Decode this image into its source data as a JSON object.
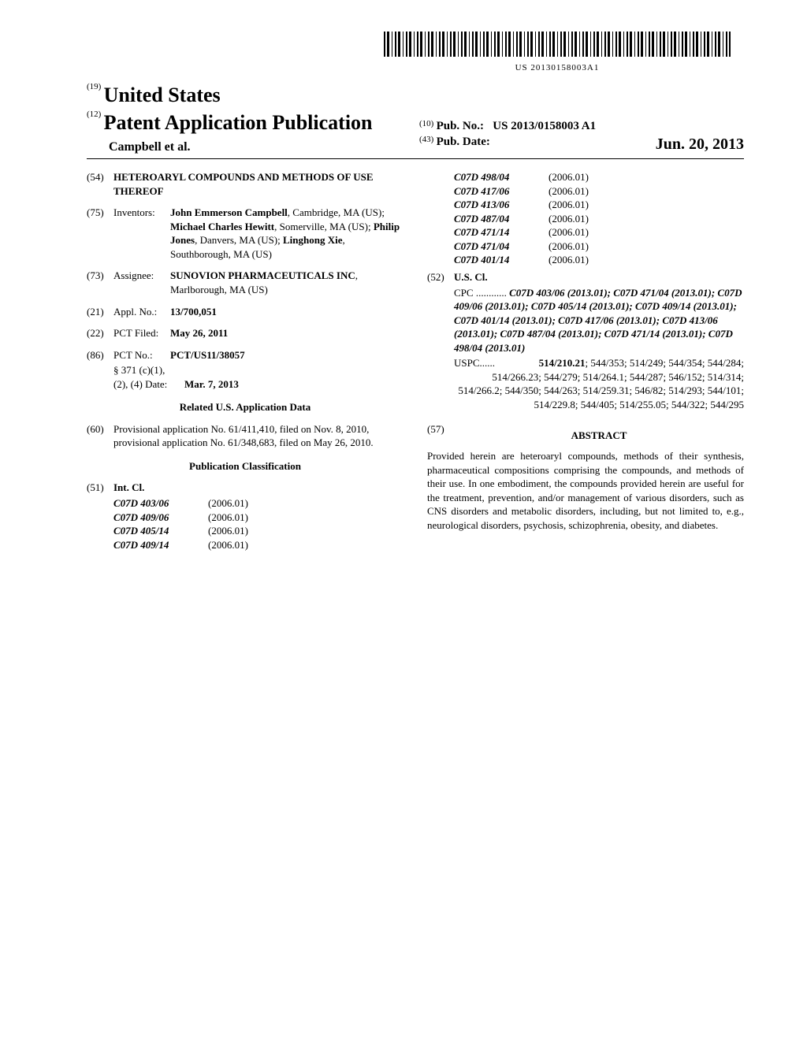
{
  "barcode_text": "US 20130158003A1",
  "header": {
    "num19": "(19)",
    "country": "United States",
    "num12": "(12)",
    "pub_type": "Patent Application Publication",
    "authors_line": "Campbell et al.",
    "num10": "(10)",
    "pubno_label": "Pub. No.:",
    "pubno": "US 2013/0158003 A1",
    "num43": "(43)",
    "pubdate_label": "Pub. Date:",
    "pubdate": "Jun. 20, 2013"
  },
  "title": {
    "num": "(54)",
    "text": "HETEROARYL COMPOUNDS AND METHODS OF USE THEREOF"
  },
  "inventors": {
    "num": "(75)",
    "label": "Inventors:",
    "text": "John Emmerson Campbell, Cambridge, MA (US); Michael Charles Hewitt, Somerville, MA (US); Philip Jones, Danvers, MA (US); Linghong Xie, Southborough, MA (US)",
    "name1": "John Emmerson Campbell",
    "loc1": ", Cambridge, MA (US); ",
    "name2": "Michael Charles Hewitt",
    "loc2": ", Somerville, MA (US); ",
    "name3": "Philip Jones",
    "loc3": ", Danvers, MA (US); ",
    "name4": "Linghong Xie",
    "loc4": ", Southborough, MA (US)"
  },
  "assignee": {
    "num": "(73)",
    "label": "Assignee:",
    "name": "SUNOVION PHARMACEUTICALS INC",
    "loc": ", Marlborough, MA (US)"
  },
  "applno": {
    "num": "(21)",
    "label": "Appl. No.:",
    "value": "13/700,051"
  },
  "pctfiled": {
    "num": "(22)",
    "label": "PCT Filed:",
    "value": "May 26, 2011"
  },
  "pctno": {
    "num": "(86)",
    "label": "PCT No.:",
    "value": "PCT/US11/38057",
    "sub1": "§ 371 (c)(1),",
    "sub2": "(2), (4) Date:",
    "sub2val": "Mar. 7, 2013"
  },
  "related": {
    "title": "Related U.S. Application Data",
    "num": "(60)",
    "text": "Provisional application No. 61/411,410, filed on Nov. 8, 2010, provisional application No. 61/348,683, filed on May 26, 2010."
  },
  "pubclass_title": "Publication Classification",
  "intcl": {
    "num": "(51)",
    "label": "Int. Cl.",
    "rows": [
      {
        "code": "C07D 403/06",
        "year": "(2006.01)"
      },
      {
        "code": "C07D 409/06",
        "year": "(2006.01)"
      },
      {
        "code": "C07D 405/14",
        "year": "(2006.01)"
      },
      {
        "code": "C07D 409/14",
        "year": "(2006.01)"
      },
      {
        "code": "C07D 498/04",
        "year": "(2006.01)"
      },
      {
        "code": "C07D 417/06",
        "year": "(2006.01)"
      },
      {
        "code": "C07D 413/06",
        "year": "(2006.01)"
      },
      {
        "code": "C07D 487/04",
        "year": "(2006.01)"
      },
      {
        "code": "C07D 471/14",
        "year": "(2006.01)"
      },
      {
        "code": "C07D 471/04",
        "year": "(2006.01)"
      },
      {
        "code": "C07D 401/14",
        "year": "(2006.01)"
      }
    ]
  },
  "uscl": {
    "num": "(52)",
    "label": "U.S. Cl.",
    "cpc_label": "CPC",
    "cpc_dots": " ............ ",
    "cpc_lines": [
      "C07D 403/06 (2013.01); C07D 471/04",
      "(2013.01); C07D 409/06 (2013.01); C07D",
      "405/14 (2013.01); C07D 409/14 (2013.01);",
      "C07D 401/14 (2013.01); C07D 417/06",
      "(2013.01); C07D 413/06 (2013.01); C07D",
      "487/04 (2013.01); C07D 471/14 (2013.01);",
      "C07D 498/04 (2013.01)"
    ],
    "uspc_label": "USPC",
    "uspc_dots": " ...... ",
    "uspc_first": "514/210.21",
    "uspc_rest": "; 544/353; 514/249; 544/354; 544/284; 514/266.23; 544/279; 514/264.1; 544/287; 546/152; 514/314; 514/266.2; 544/350; 544/263; 514/259.31; 546/82; 514/293; 544/101; 514/229.8; 544/405; 514/255.05; 544/322; 544/295"
  },
  "abstract": {
    "num": "(57)",
    "title": "ABSTRACT",
    "text": "Provided herein are heteroaryl compounds, methods of their synthesis, pharmaceutical compositions comprising the compounds, and methods of their use. In one embodiment, the compounds provided herein are useful for the treatment, prevention, and/or management of various disorders, such as CNS disorders and metabolic disorders, including, but not limited to, e.g., neurological disorders, psychosis, schizophrenia, obesity, and diabetes."
  }
}
